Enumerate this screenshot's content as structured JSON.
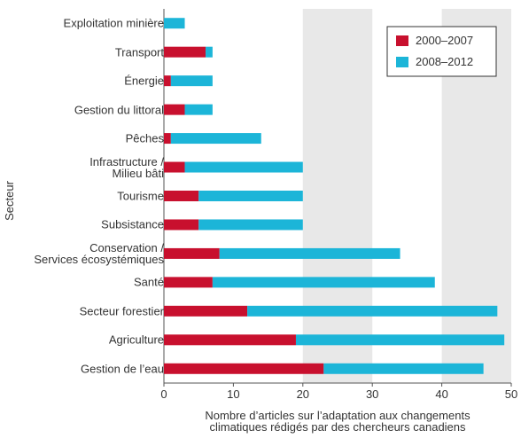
{
  "chart_data": {
    "type": "stacked_barh",
    "categories": [
      "Exploitation minière",
      "Transport",
      "Énergie",
      "Gestion du littoral",
      "Pêches",
      "Infrastructure /\nMilieu bâti",
      "Tourisme",
      "Subsistance",
      "Conservation /\nServices écosystémiques",
      "Santé",
      "Secteur forestier",
      "Agriculture",
      "Gestion de l’eau"
    ],
    "series": [
      {
        "name": "2000–2007",
        "color": "#c8102e",
        "values": [
          0,
          6,
          1,
          3,
          1,
          3,
          5,
          5,
          8,
          7,
          12,
          19,
          23
        ]
      },
      {
        "name": "2008–2012",
        "color": "#1cb5d8",
        "values": [
          3,
          1,
          6,
          4,
          13,
          17,
          15,
          15,
          26,
          32,
          36,
          30,
          23
        ]
      }
    ],
    "xlim": [
      0,
      50
    ],
    "xticks": [
      0,
      10,
      20,
      30,
      40,
      50
    ],
    "xlabel": "Nombre d’articles sur l’adaptation aux changements\nclimatiques rédigés par des chercheurs canadiens",
    "ylabel": "Secteur",
    "legend": "upper right"
  }
}
